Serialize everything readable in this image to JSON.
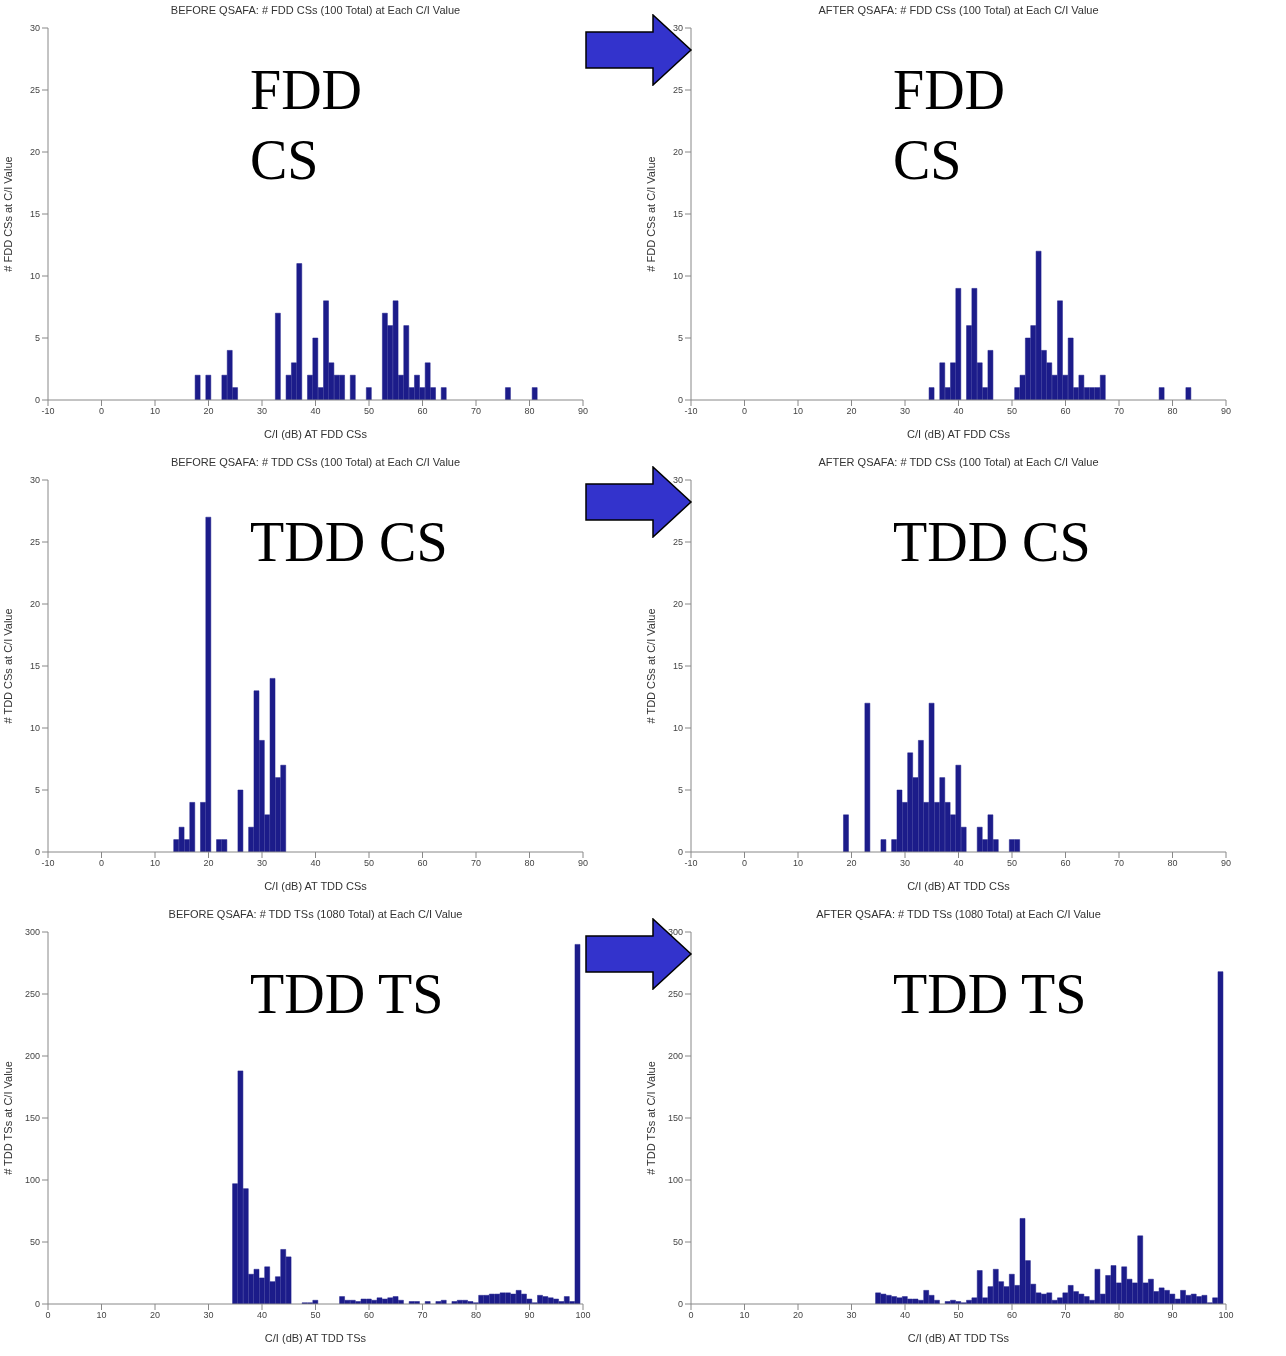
{
  "chart_data": [
    {
      "type": "bar",
      "title": "BEFORE QSAFA: # FDD CSs (100 Total) at Each C/I Value",
      "xlabel": "C/I (dB) AT FDD CSs",
      "ylabel": "# FDD CSs at C/I Value",
      "color": "#1c1c8a",
      "xlim": [
        -10,
        90
      ],
      "xticks": [
        -10,
        0,
        10,
        20,
        30,
        40,
        50,
        60,
        70,
        80,
        90
      ],
      "ylim": [
        0,
        30
      ],
      "yticks": [
        0,
        5,
        10,
        15,
        20,
        25,
        30
      ],
      "annotations": [
        "FDD\nCS"
      ],
      "x": [
        18,
        20,
        23,
        24,
        25,
        33,
        35,
        36,
        37,
        39,
        40,
        41,
        42,
        43,
        44,
        45,
        47,
        50,
        53,
        54,
        55,
        56,
        57,
        58,
        59,
        60,
        61,
        62,
        64,
        76,
        81
      ],
      "values": [
        2,
        2,
        2,
        4,
        1,
        7,
        2,
        3,
        11,
        2,
        5,
        1,
        8,
        3,
        2,
        2,
        2,
        1,
        7,
        6,
        8,
        2,
        6,
        1,
        2,
        1,
        3,
        1,
        1,
        1,
        1
      ]
    },
    {
      "type": "bar",
      "title": "AFTER QSAFA: # FDD CSs (100 Total) at Each C/I Value",
      "xlabel": "C/I (dB) AT FDD CSs",
      "ylabel": "# FDD CSs at C/I Value",
      "color": "#1c1c8a",
      "xlim": [
        -10,
        90
      ],
      "xticks": [
        -10,
        0,
        10,
        20,
        30,
        40,
        50,
        60,
        70,
        80,
        90
      ],
      "ylim": [
        0,
        30
      ],
      "yticks": [
        0,
        5,
        10,
        15,
        20,
        25,
        30
      ],
      "annotations": [
        "FDD\nCS"
      ],
      "x": [
        35,
        37,
        38,
        39,
        40,
        42,
        43,
        44,
        45,
        46,
        51,
        52,
        53,
        54,
        55,
        56,
        57,
        58,
        59,
        60,
        61,
        62,
        63,
        64,
        65,
        66,
        67,
        78,
        83
      ],
      "values": [
        1,
        3,
        1,
        3,
        9,
        6,
        9,
        3,
        1,
        4,
        1,
        2,
        5,
        6,
        12,
        4,
        3,
        2,
        8,
        2,
        5,
        1,
        2,
        1,
        1,
        1,
        2,
        1,
        1
      ]
    },
    {
      "type": "bar",
      "title": "BEFORE QSAFA: # TDD CSs (100 Total) at Each C/I Value",
      "xlabel": "C/I (dB) AT TDD CSs",
      "ylabel": "# TDD CSs at C/I Value",
      "color": "#1c1c8a",
      "xlim": [
        -10,
        90
      ],
      "xticks": [
        -10,
        0,
        10,
        20,
        30,
        40,
        50,
        60,
        70,
        80,
        90
      ],
      "ylim": [
        0,
        30
      ],
      "yticks": [
        0,
        5,
        10,
        15,
        20,
        25,
        30
      ],
      "annotations": [
        "TDD CS"
      ],
      "x": [
        14,
        15,
        16,
        17,
        19,
        20,
        22,
        23,
        26,
        28,
        29,
        30,
        31,
        32,
        33,
        34
      ],
      "values": [
        1,
        2,
        1,
        4,
        4,
        27,
        1,
        1,
        5,
        2,
        13,
        9,
        3,
        14,
        6,
        7
      ]
    },
    {
      "type": "bar",
      "title": "AFTER QSAFA: # TDD CSs (100 Total) at Each C/I Value",
      "xlabel": "C/I (dB) AT TDD CSs",
      "ylabel": "# TDD CSs at C/I Value",
      "color": "#1c1c8a",
      "xlim": [
        -10,
        90
      ],
      "xticks": [
        -10,
        0,
        10,
        20,
        30,
        40,
        50,
        60,
        70,
        80,
        90
      ],
      "ylim": [
        0,
        30
      ],
      "yticks": [
        0,
        5,
        10,
        15,
        20,
        25,
        30
      ],
      "annotations": [
        "TDD CS"
      ],
      "x": [
        19,
        23,
        26,
        28,
        29,
        30,
        31,
        32,
        33,
        34,
        35,
        36,
        37,
        38,
        39,
        40,
        41,
        44,
        45,
        46,
        47,
        50,
        51
      ],
      "values": [
        3,
        12,
        1,
        1,
        5,
        4,
        8,
        6,
        9,
        4,
        12,
        4,
        6,
        4,
        3,
        7,
        2,
        2,
        1,
        3,
        1,
        1,
        1
      ]
    },
    {
      "type": "bar",
      "title": "BEFORE QSAFA: # TDD TSs (1080 Total) at Each C/I Value",
      "xlabel": "C/I (dB) AT TDD TSs",
      "ylabel": "# TDD TSs at C/I Value",
      "color": "#1c1c8a",
      "xlim": [
        0,
        100
      ],
      "xticks": [
        0,
        10,
        20,
        30,
        40,
        50,
        60,
        70,
        80,
        90,
        100
      ],
      "ylim": [
        0,
        300
      ],
      "yticks": [
        0,
        50,
        100,
        150,
        200,
        250,
        300
      ],
      "annotations": [
        "TDD TS"
      ],
      "x": [
        35,
        36,
        37,
        38,
        39,
        40,
        41,
        42,
        43,
        44,
        45,
        48,
        49,
        50,
        55,
        56,
        57,
        58,
        59,
        60,
        61,
        62,
        63,
        64,
        65,
        66,
        68,
        69,
        71,
        73,
        74,
        76,
        77,
        78,
        79,
        80,
        81,
        82,
        83,
        84,
        85,
        86,
        87,
        88,
        89,
        90,
        91,
        92,
        93,
        94,
        95,
        96,
        97,
        98,
        99
      ],
      "values": [
        97,
        188,
        93,
        24,
        28,
        21,
        30,
        18,
        22,
        44,
        38,
        1,
        1,
        3,
        6,
        3,
        3,
        2,
        4,
        4,
        3,
        5,
        4,
        5,
        6,
        3,
        2,
        2,
        2,
        2,
        3,
        2,
        3,
        3,
        2,
        1,
        7,
        7,
        8,
        8,
        9,
        9,
        8,
        11,
        8,
        4,
        1,
        7,
        6,
        5,
        4,
        2,
        6,
        2,
        290
      ]
    },
    {
      "type": "bar",
      "title": "AFTER QSAFA: # TDD TSs (1080 Total) at Each C/I Value",
      "xlabel": "C/I (dB) AT TDD TSs",
      "ylabel": "# TDD TSs at C/I Value",
      "color": "#1c1c8a",
      "xlim": [
        0,
        100
      ],
      "xticks": [
        0,
        10,
        20,
        30,
        40,
        50,
        60,
        70,
        80,
        90,
        100
      ],
      "ylim": [
        0,
        300
      ],
      "yticks": [
        0,
        50,
        100,
        150,
        200,
        250,
        300
      ],
      "annotations": [
        "TDD TS"
      ],
      "x": [
        35,
        36,
        37,
        38,
        39,
        40,
        41,
        42,
        43,
        44,
        45,
        46,
        48,
        49,
        50,
        51,
        52,
        53,
        54,
        55,
        56,
        57,
        58,
        59,
        60,
        61,
        62,
        63,
        64,
        65,
        66,
        67,
        68,
        69,
        70,
        71,
        72,
        73,
        74,
        75,
        76,
        77,
        78,
        79,
        80,
        81,
        82,
        83,
        84,
        85,
        86,
        87,
        88,
        89,
        90,
        91,
        92,
        93,
        94,
        95,
        96,
        97,
        98,
        99
      ],
      "values": [
        9,
        8,
        7,
        6,
        5,
        6,
        4,
        4,
        3,
        11,
        7,
        3,
        2,
        3,
        2,
        1,
        3,
        5,
        27,
        5,
        14,
        28,
        18,
        14,
        24,
        15,
        69,
        35,
        16,
        9,
        8,
        9,
        3,
        5,
        9,
        15,
        10,
        8,
        6,
        3,
        28,
        8,
        23,
        31,
        17,
        30,
        20,
        17,
        55,
        17,
        20,
        10,
        13,
        11,
        8,
        4,
        11,
        7,
        8,
        6,
        7,
        1,
        5,
        268
      ]
    }
  ]
}
